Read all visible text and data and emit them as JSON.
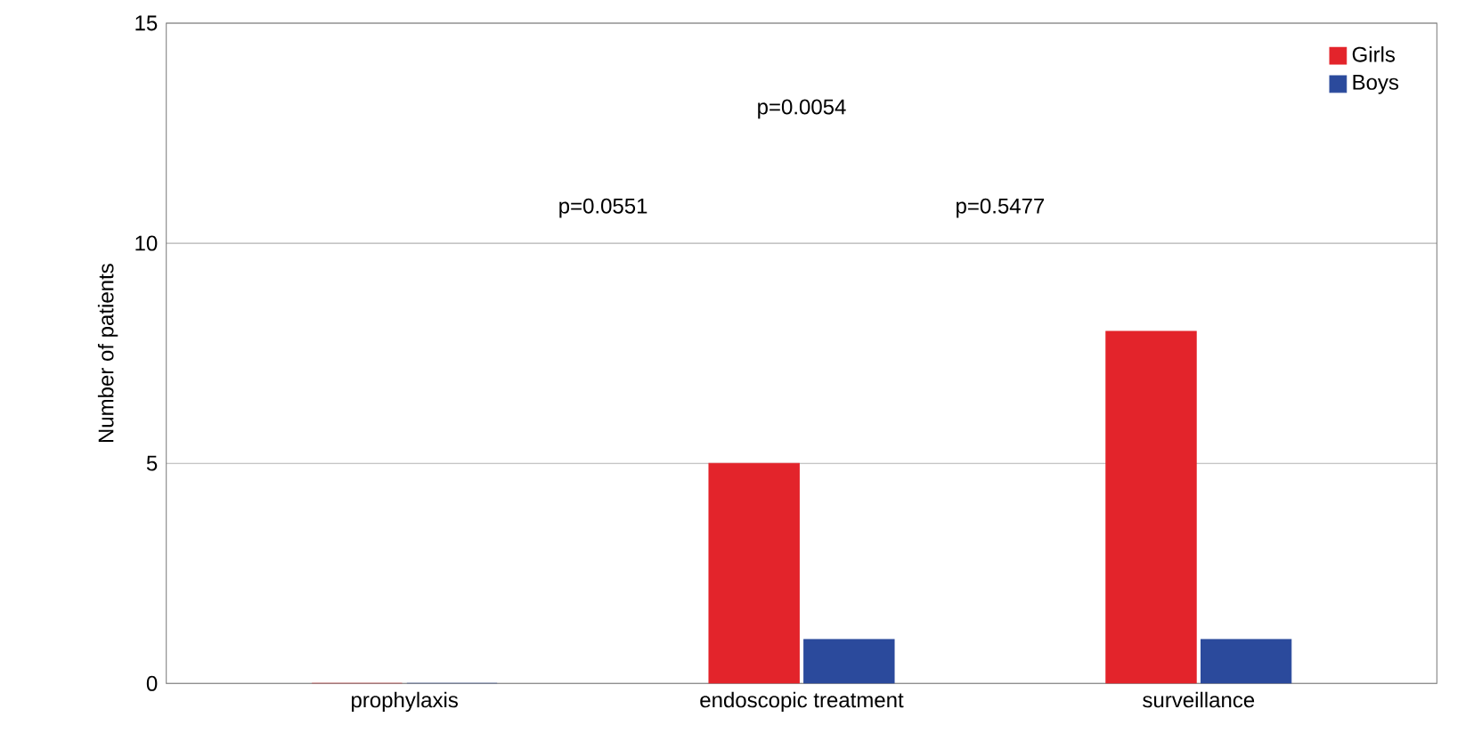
{
  "chart_data": {
    "type": "bar",
    "ylabel": "Number of patients",
    "categories": [
      "prophylaxis",
      "endoscopic treatment",
      "surveillance"
    ],
    "series": [
      {
        "name": "Girls",
        "color": "#e3242b",
        "values": [
          0,
          5,
          8
        ]
      },
      {
        "name": "Boys",
        "color": "#2b4a9c",
        "values": [
          0,
          1,
          1
        ]
      }
    ],
    "ylim": [
      0,
      15
    ],
    "yticks": [
      0,
      5,
      10,
      15
    ],
    "grid": "y",
    "legend": "top right",
    "annotations": [
      "p=0.0054",
      "p=0.0551",
      "p=0.5477"
    ]
  }
}
